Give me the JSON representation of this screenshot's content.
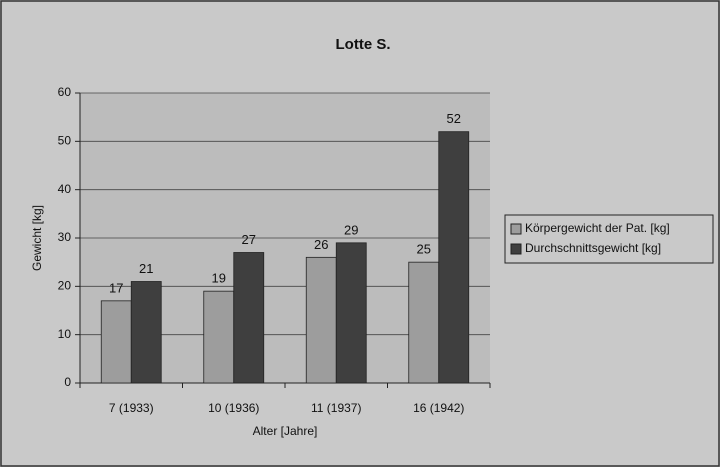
{
  "chart_data": {
    "type": "bar",
    "title": "Lotte S.",
    "categories": [
      "7 (1933)",
      "10 (1936)",
      "11 (1937)",
      "16 (1942)"
    ],
    "series": [
      {
        "name": "Körpergewicht der Pat. [kg]",
        "color": "#9d9d9d",
        "values": [
          17,
          19,
          26,
          25
        ]
      },
      {
        "name": "Durchschnittsgewicht [kg]",
        "color": "#3f3f3f",
        "values": [
          21,
          27,
          29,
          52
        ]
      }
    ],
    "xlabel": "Alter [Jahre]",
    "ylabel": "Gewicht [kg]",
    "ylim": [
      0,
      60
    ],
    "yticks": [
      0,
      10,
      20,
      30,
      40,
      50,
      60
    ],
    "grid": true,
    "legend": "right"
  }
}
